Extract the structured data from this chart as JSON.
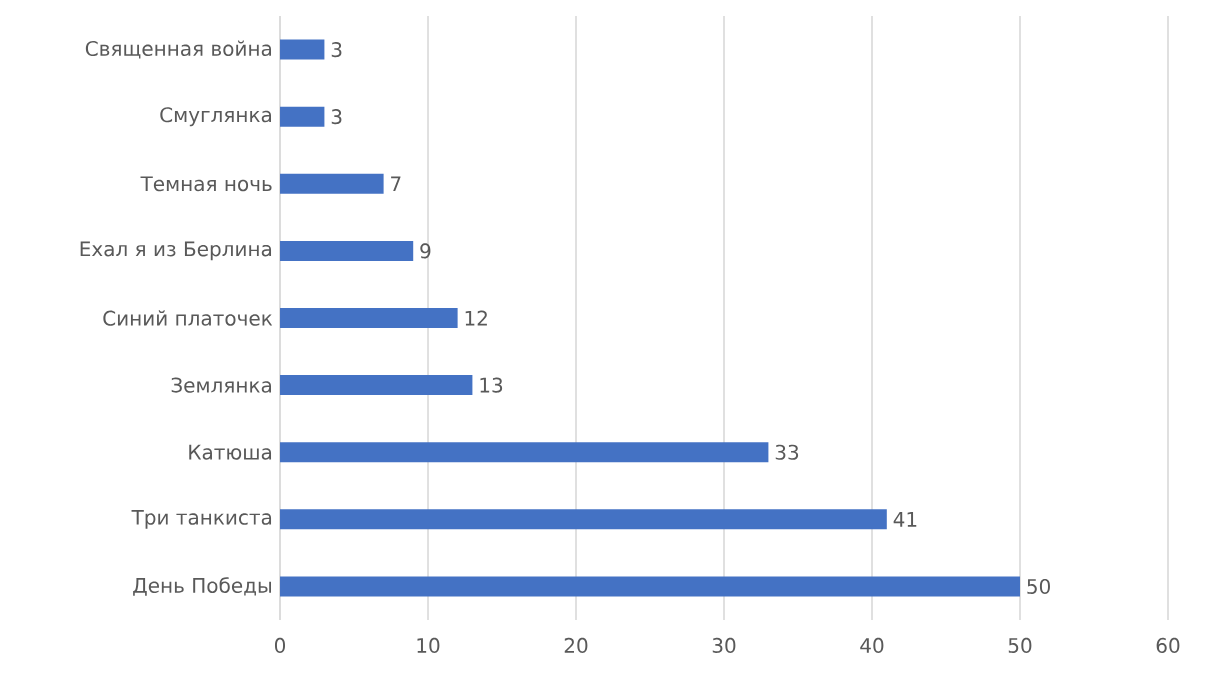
{
  "chart_data": {
    "type": "bar",
    "orientation": "horizontal",
    "categories": [
      "Священная война",
      "Смуглянка",
      "Темная ночь",
      "Ехал я из Берлина",
      "Синий платочек",
      "Землянка",
      "Катюша",
      "Три танкиста",
      "День Победы"
    ],
    "values": [
      3,
      3,
      7,
      9,
      12,
      13,
      33,
      41,
      50
    ],
    "color": "#4472c4",
    "xlim": [
      0,
      60
    ],
    "xticks": [
      0,
      10,
      20,
      30,
      40,
      50,
      60
    ],
    "grid": "x",
    "data_labels": true
  }
}
